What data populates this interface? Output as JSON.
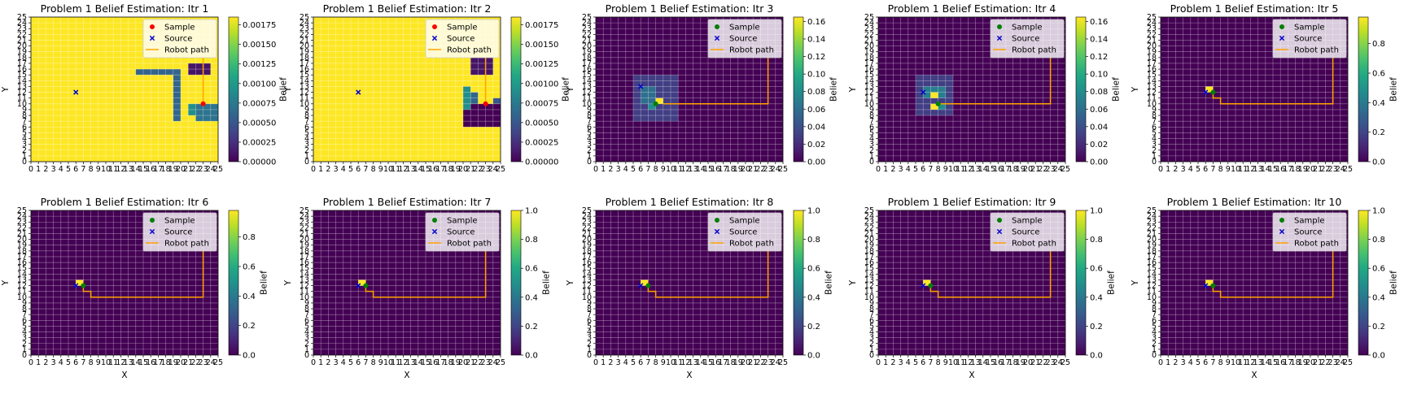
{
  "colormap": [
    "#440154",
    "#482475",
    "#414487",
    "#355f8d",
    "#2a788e",
    "#21918c",
    "#22a884",
    "#44bf70",
    "#7ad151",
    "#bddf26",
    "#fde725"
  ],
  "colors": {
    "sample_red": "#ff0000",
    "sample_green": "#008000",
    "source": "#0000cd",
    "path": "#ffa500",
    "grid_line": "#ffffff"
  },
  "chart_data": [
    {
      "type": "heatmap",
      "title": "Problem 1 Belief Estimation: Itr 1",
      "xlabel": "",
      "ylabel": "Y",
      "colorbar_label": "Belief",
      "colorbar_ticks": [
        "0.00000",
        "0.00025",
        "0.00050",
        "0.00075",
        "0.00100",
        "0.00125",
        "0.00150",
        "0.00175"
      ],
      "vmax": 0.00185,
      "grid_size": 25,
      "xlim": [
        0,
        25
      ],
      "ylim": [
        0,
        25
      ],
      "belief": {
        "background": 0.00185,
        "cells": [
          {
            "x0": 21,
            "x1": 24,
            "y0": 15,
            "y1": 17,
            "value": 0.0001
          },
          {
            "x0": 14,
            "x1": 20,
            "y0": 15,
            "y1": 16,
            "value": 0.0006
          },
          {
            "x0": 19,
            "x1": 20,
            "y0": 7,
            "y1": 15,
            "value": 0.0006
          },
          {
            "x0": 22,
            "x1": 25,
            "y0": 7,
            "y1": 10,
            "value": 0.0007
          },
          {
            "x0": 21,
            "x1": 22,
            "y0": 8,
            "y1": 10,
            "value": 0.0009
          }
        ]
      },
      "path": [
        [
          23,
          18
        ],
        [
          23,
          10
        ]
      ],
      "sample": [
        23,
        10
      ],
      "sample_color": "red",
      "source": [
        6,
        12
      ],
      "legend": [
        "Sample",
        "Source",
        "Robot path"
      ],
      "legend_loc": "upper right"
    },
    {
      "type": "heatmap",
      "title": "Problem 1 Belief Estimation: Itr 2",
      "xlabel": "",
      "ylabel": "Y",
      "colorbar_label": "Belief",
      "colorbar_ticks": [
        "0.00000",
        "0.00025",
        "0.00050",
        "0.00075",
        "0.00100",
        "0.00125",
        "0.00150",
        "0.00175"
      ],
      "vmax": 0.00185,
      "grid_size": 25,
      "xlim": [
        0,
        25
      ],
      "ylim": [
        0,
        25
      ],
      "belief": {
        "background": 0.00185,
        "cells": [
          {
            "x0": 21,
            "x1": 24,
            "y0": 15,
            "y1": 18,
            "value": 0.0001
          },
          {
            "x0": 20,
            "x1": 25,
            "y0": 6,
            "y1": 10,
            "value": 0.0
          },
          {
            "x0": 20,
            "x1": 21,
            "y0": 9,
            "y1": 13,
            "value": 0.0009
          },
          {
            "x0": 21,
            "x1": 22,
            "y0": 10,
            "y1": 12,
            "value": 0.0006
          },
          {
            "x0": 24,
            "x1": 25,
            "y0": 10,
            "y1": 11,
            "value": 0.0005
          }
        ]
      },
      "path": [
        [
          23,
          18
        ],
        [
          23,
          10
        ]
      ],
      "sample": [
        23,
        10
      ],
      "sample_color": "red",
      "source": [
        6,
        12
      ],
      "legend": [
        "Sample",
        "Source",
        "Robot path"
      ],
      "legend_loc": "upper right"
    },
    {
      "type": "heatmap",
      "title": "Problem 1 Belief Estimation: Itr 3",
      "xlabel": "",
      "ylabel": "Y",
      "colorbar_label": "Belief",
      "colorbar_ticks": [
        "0.00",
        "0.02",
        "0.04",
        "0.06",
        "0.08",
        "0.10",
        "0.12",
        "0.14",
        "0.16"
      ],
      "vmax": 0.165,
      "grid_size": 25,
      "xlim": [
        0,
        25
      ],
      "ylim": [
        0,
        25
      ],
      "belief": {
        "background": 0.0,
        "cells": [
          {
            "x0": 5,
            "x1": 11,
            "y0": 7,
            "y1": 15,
            "value": 0.03
          },
          {
            "x0": 6,
            "x1": 8,
            "y0": 10,
            "y1": 13,
            "value": 0.06
          },
          {
            "x0": 8,
            "x1": 9,
            "y0": 10,
            "y1": 11,
            "value": 0.165
          },
          {
            "x0": 7,
            "x1": 8,
            "y0": 9,
            "y1": 10,
            "value": 0.08
          }
        ]
      },
      "path": [
        [
          23,
          18
        ],
        [
          23,
          10
        ],
        [
          9,
          10
        ]
      ],
      "sample": [
        8,
        10
      ],
      "sample_color": "green",
      "source": [
        6,
        13
      ],
      "legend": [
        "Sample",
        "Source",
        "Robot path"
      ],
      "legend_loc": "upper right"
    },
    {
      "type": "heatmap",
      "title": "Problem 1 Belief Estimation: Itr 4",
      "xlabel": "",
      "ylabel": "Y",
      "colorbar_label": "Belief",
      "colorbar_ticks": [
        "0.00",
        "0.02",
        "0.04",
        "0.06",
        "0.08",
        "0.10",
        "0.12",
        "0.14",
        "0.16"
      ],
      "vmax": 0.165,
      "grid_size": 25,
      "xlim": [
        0,
        25
      ],
      "ylim": [
        0,
        25
      ],
      "belief": {
        "background": 0.0,
        "cells": [
          {
            "x0": 5,
            "x1": 10,
            "y0": 8,
            "y1": 15,
            "value": 0.03
          },
          {
            "x0": 6,
            "x1": 9,
            "y0": 11,
            "y1": 13,
            "value": 0.07
          },
          {
            "x0": 7,
            "x1": 8,
            "y0": 11,
            "y1": 12,
            "value": 0.165
          },
          {
            "x0": 7,
            "x1": 8,
            "y0": 9,
            "y1": 10,
            "value": 0.165
          },
          {
            "x0": 8,
            "x1": 9,
            "y0": 9,
            "y1": 10,
            "value": 0.08
          }
        ]
      },
      "path": [
        [
          23,
          18
        ],
        [
          23,
          10
        ],
        [
          8,
          10
        ]
      ],
      "sample": [
        8,
        10
      ],
      "sample_color": "green",
      "source": [
        6,
        12
      ],
      "legend": [
        "Sample",
        "Source",
        "Robot path"
      ],
      "legend_loc": "upper right"
    },
    {
      "type": "heatmap",
      "title": "Problem 1 Belief Estimation: Itr 5",
      "xlabel": "",
      "ylabel": "Y",
      "colorbar_label": "Belief",
      "colorbar_ticks": [
        "0.0",
        "0.2",
        "0.4",
        "0.6",
        "0.8"
      ],
      "vmax": 0.98,
      "grid_size": 25,
      "xlim": [
        0,
        25
      ],
      "ylim": [
        0,
        25
      ],
      "belief": {
        "background": 0.0,
        "cells": [
          {
            "x0": 6,
            "x1": 7,
            "y0": 12,
            "y1": 13,
            "value": 0.98
          }
        ]
      },
      "path": [
        [
          23,
          18
        ],
        [
          23,
          10
        ],
        [
          8,
          10
        ],
        [
          8,
          11
        ],
        [
          7,
          11
        ],
        [
          7,
          12
        ]
      ],
      "sample": [
        7,
        12
      ],
      "sample_color": "green",
      "source": [
        6,
        12
      ],
      "legend": [
        "Sample",
        "Source",
        "Robot path"
      ],
      "legend_loc": "upper right"
    },
    {
      "type": "heatmap",
      "title": "Problem 1 Belief Estimation: Itr 6",
      "xlabel": "X",
      "ylabel": "Y",
      "colorbar_label": "Belief",
      "colorbar_ticks": [
        "0.0",
        "0.2",
        "0.4",
        "0.6",
        "0.8"
      ],
      "vmax": 0.98,
      "grid_size": 25,
      "xlim": [
        0,
        25
      ],
      "ylim": [
        0,
        25
      ],
      "belief": {
        "background": 0.0,
        "cells": [
          {
            "x0": 6,
            "x1": 7,
            "y0": 12,
            "y1": 13,
            "value": 0.98
          }
        ]
      },
      "path": [
        [
          23,
          18
        ],
        [
          23,
          10
        ],
        [
          8,
          10
        ],
        [
          8,
          11
        ],
        [
          7,
          11
        ],
        [
          7,
          12
        ]
      ],
      "sample": [
        7,
        12
      ],
      "sample_color": "green",
      "source": [
        6,
        12
      ],
      "legend": [
        "Sample",
        "Source",
        "Robot path"
      ],
      "legend_loc": "upper right"
    },
    {
      "type": "heatmap",
      "title": "Problem 1 Belief Estimation: Itr 7",
      "xlabel": "X",
      "ylabel": "Y",
      "colorbar_label": "Belief",
      "colorbar_ticks": [
        "0.0",
        "0.2",
        "0.4",
        "0.6",
        "0.8",
        "1.0"
      ],
      "vmax": 1.0,
      "grid_size": 25,
      "xlim": [
        0,
        25
      ],
      "ylim": [
        0,
        25
      ],
      "belief": {
        "background": 0.0,
        "cells": [
          {
            "x0": 6,
            "x1": 7,
            "y0": 12,
            "y1": 13,
            "value": 1.0
          }
        ]
      },
      "path": [
        [
          23,
          18
        ],
        [
          23,
          10
        ],
        [
          8,
          10
        ],
        [
          8,
          11
        ],
        [
          7,
          11
        ],
        [
          7,
          12
        ]
      ],
      "sample": [
        7,
        12
      ],
      "sample_color": "green",
      "source": [
        6,
        12
      ],
      "legend": [
        "Sample",
        "Source",
        "Robot path"
      ],
      "legend_loc": "upper right"
    },
    {
      "type": "heatmap",
      "title": "Problem 1 Belief Estimation: Itr 8",
      "xlabel": "X",
      "ylabel": "Y",
      "colorbar_label": "Belief",
      "colorbar_ticks": [
        "0.0",
        "0.2",
        "0.4",
        "0.6",
        "0.8",
        "1.0"
      ],
      "vmax": 1.0,
      "grid_size": 25,
      "xlim": [
        0,
        25
      ],
      "ylim": [
        0,
        25
      ],
      "belief": {
        "background": 0.0,
        "cells": [
          {
            "x0": 6,
            "x1": 7,
            "y0": 12,
            "y1": 13,
            "value": 1.0
          }
        ]
      },
      "path": [
        [
          23,
          18
        ],
        [
          23,
          10
        ],
        [
          8,
          10
        ],
        [
          8,
          11
        ],
        [
          7,
          11
        ],
        [
          7,
          12
        ]
      ],
      "sample": [
        7,
        12
      ],
      "sample_color": "green",
      "source": [
        6,
        12
      ],
      "legend": [
        "Sample",
        "Source",
        "Robot path"
      ],
      "legend_loc": "upper right"
    },
    {
      "type": "heatmap",
      "title": "Problem 1 Belief Estimation: Itr 9",
      "xlabel": "X",
      "ylabel": "Y",
      "colorbar_label": "Belief",
      "colorbar_ticks": [
        "0.0",
        "0.2",
        "0.4",
        "0.6",
        "0.8",
        "1.0"
      ],
      "vmax": 1.0,
      "grid_size": 25,
      "xlim": [
        0,
        25
      ],
      "ylim": [
        0,
        25
      ],
      "belief": {
        "background": 0.0,
        "cells": [
          {
            "x0": 6,
            "x1": 7,
            "y0": 12,
            "y1": 13,
            "value": 1.0
          }
        ]
      },
      "path": [
        [
          23,
          18
        ],
        [
          23,
          10
        ],
        [
          8,
          10
        ],
        [
          8,
          11
        ],
        [
          7,
          11
        ],
        [
          7,
          12
        ]
      ],
      "sample": [
        7,
        12
      ],
      "sample_color": "green",
      "source": [
        6,
        12
      ],
      "legend": [
        "Sample",
        "Source",
        "Robot path"
      ],
      "legend_loc": "upper right"
    },
    {
      "type": "heatmap",
      "title": "Problem 1 Belief Estimation: Itr 10",
      "xlabel": "X",
      "ylabel": "Y",
      "colorbar_label": "Belief",
      "colorbar_ticks": [
        "0.0",
        "0.2",
        "0.4",
        "0.6",
        "0.8",
        "1.0"
      ],
      "vmax": 1.0,
      "grid_size": 25,
      "xlim": [
        0,
        25
      ],
      "ylim": [
        0,
        25
      ],
      "belief": {
        "background": 0.0,
        "cells": [
          {
            "x0": 6,
            "x1": 7,
            "y0": 12,
            "y1": 13,
            "value": 1.0
          }
        ]
      },
      "path": [
        [
          23,
          18
        ],
        [
          23,
          10
        ],
        [
          8,
          10
        ],
        [
          8,
          11
        ],
        [
          7,
          11
        ],
        [
          7,
          12
        ]
      ],
      "sample": [
        7,
        12
      ],
      "sample_color": "green",
      "source": [
        6,
        12
      ],
      "legend": [
        "Sample",
        "Source",
        "Robot path"
      ],
      "legend_loc": "upper right"
    }
  ]
}
